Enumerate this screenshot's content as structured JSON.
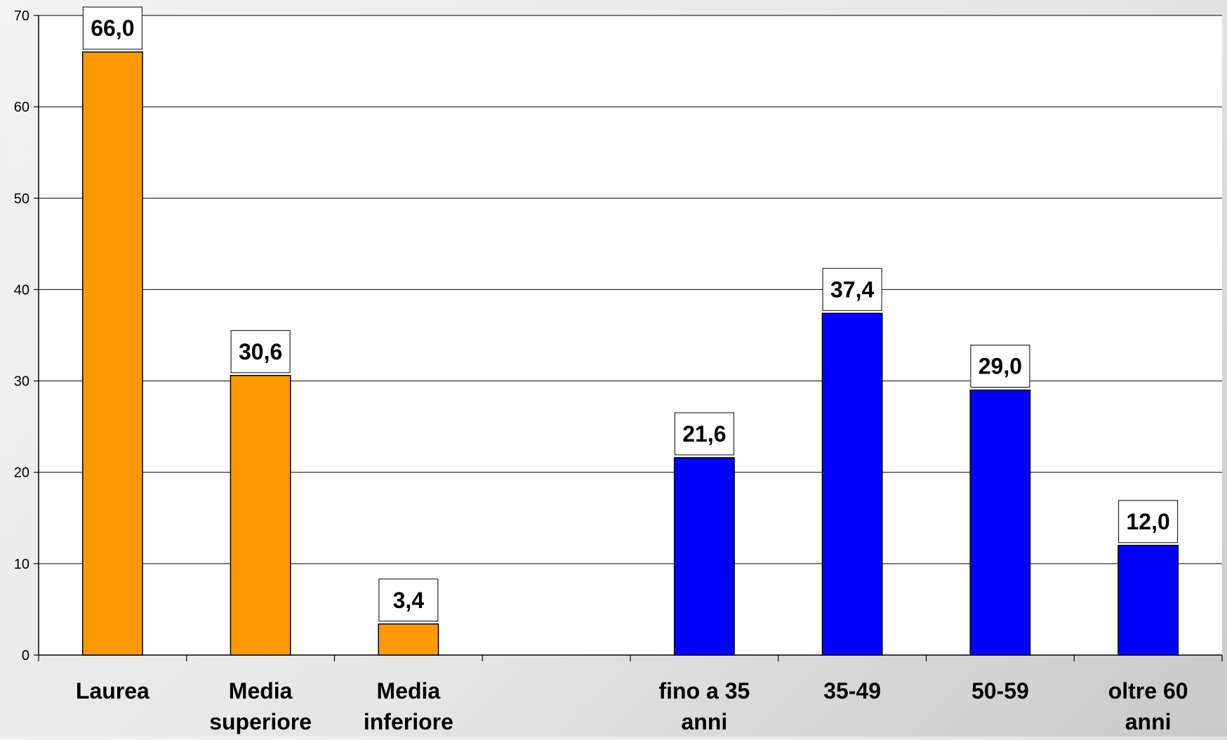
{
  "chart_data": {
    "type": "bar",
    "title": "",
    "xlabel": "",
    "ylabel": "",
    "ylim": [
      0,
      70
    ],
    "yticks": [
      0,
      10,
      20,
      30,
      40,
      50,
      60,
      70
    ],
    "grid": true,
    "legend": "none",
    "categories": [
      [
        "Laurea"
      ],
      [
        "Media",
        "superiore"
      ],
      [
        "Media",
        "inferiore"
      ],
      [],
      [
        "fino a 35",
        "anni"
      ],
      [
        "35-49"
      ],
      [
        "50-59"
      ],
      [
        "oltre 60",
        "anni"
      ]
    ],
    "values": [
      66.0,
      30.6,
      3.4,
      null,
      21.6,
      37.4,
      29.0,
      12.0
    ],
    "value_labels": [
      "66,0",
      "30,6",
      "3,4",
      "",
      "21,6",
      "37,4",
      "29,0",
      "12,0"
    ],
    "bar_colors": [
      "#ff9900",
      "#ff9900",
      "#ff9900",
      "",
      "#0000ff",
      "#0000ff",
      "#0000ff",
      "#0000ff"
    ]
  },
  "colors": {
    "plot_background": "#ffffff",
    "gridline": "#000000",
    "bar_outline": "#000000",
    "label_box_fill": "#ffffff"
  }
}
